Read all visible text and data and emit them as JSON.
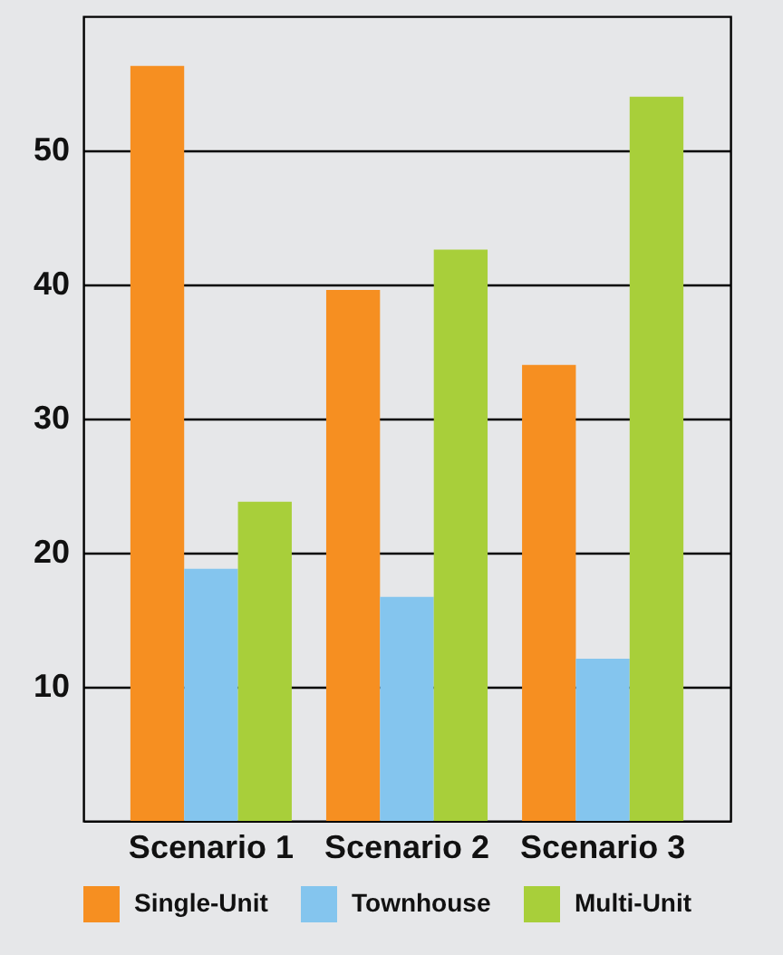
{
  "chart_data": {
    "type": "bar",
    "categories": [
      "Scenario 1",
      "Scenario 2",
      "Scenario 3"
    ],
    "series": [
      {
        "name": "Single-Unit",
        "color": "#f68f21",
        "values": [
          56.3,
          39.6,
          34.0
        ]
      },
      {
        "name": "Townhouse",
        "color": "#84c5ee",
        "values": [
          18.8,
          16.7,
          12.1
        ]
      },
      {
        "name": "Multi-Unit",
        "color": "#a8cf3a",
        "values": [
          23.8,
          42.6,
          54.0
        ]
      }
    ],
    "ylim": [
      0,
      60
    ],
    "yticks": [
      10,
      20,
      30,
      40,
      50
    ],
    "grid": "y",
    "legend": "bottom"
  }
}
